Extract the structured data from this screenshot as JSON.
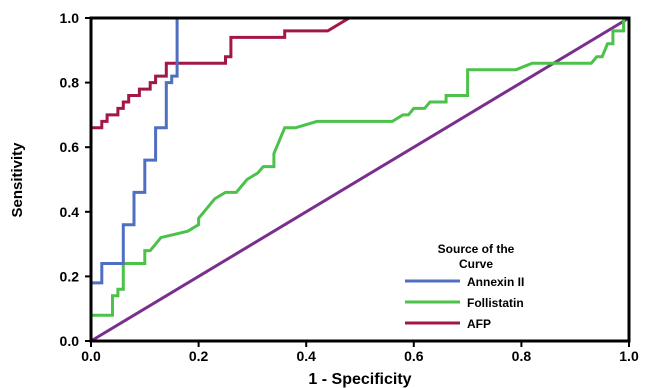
{
  "chart_data": {
    "type": "line",
    "xlabel": "1 - Specificity",
    "ylabel": "Sensitivity",
    "xlim": [
      0,
      1
    ],
    "ylim": [
      0,
      1
    ],
    "x_ticks": [
      "0.0",
      "0.2",
      "0.4",
      "0.6",
      "0.8",
      "1.0"
    ],
    "y_ticks": [
      "0.0",
      "0.2",
      "0.4",
      "0.6",
      "0.8",
      "1.0"
    ],
    "grid": false,
    "legend": {
      "title_line1": "Source of the",
      "title_line2": "Curve",
      "placement": "bottom-right"
    },
    "series": [
      {
        "name": "Annexin II",
        "color": "#4f6fc0",
        "points": [
          [
            0,
            0
          ],
          [
            0,
            0.18
          ],
          [
            0.02,
            0.18
          ],
          [
            0.02,
            0.24
          ],
          [
            0.06,
            0.24
          ],
          [
            0.06,
            0.36
          ],
          [
            0.08,
            0.36
          ],
          [
            0.08,
            0.46
          ],
          [
            0.1,
            0.46
          ],
          [
            0.1,
            0.56
          ],
          [
            0.12,
            0.56
          ],
          [
            0.12,
            0.66
          ],
          [
            0.14,
            0.66
          ],
          [
            0.14,
            0.8
          ],
          [
            0.15,
            0.8
          ],
          [
            0.15,
            0.82
          ],
          [
            0.16,
            0.82
          ],
          [
            0.16,
            1.0
          ],
          [
            1.0,
            1.0
          ]
        ]
      },
      {
        "name": "Follistatin",
        "color": "#4cc24a",
        "points": [
          [
            0,
            0
          ],
          [
            0,
            0.08
          ],
          [
            0.04,
            0.08
          ],
          [
            0.04,
            0.14
          ],
          [
            0.05,
            0.14
          ],
          [
            0.05,
            0.16
          ],
          [
            0.06,
            0.16
          ],
          [
            0.06,
            0.24
          ],
          [
            0.1,
            0.24
          ],
          [
            0.1,
            0.28
          ],
          [
            0.11,
            0.28
          ],
          [
            0.12,
            0.3
          ],
          [
            0.13,
            0.32
          ],
          [
            0.18,
            0.34
          ],
          [
            0.2,
            0.36
          ],
          [
            0.2,
            0.38
          ],
          [
            0.21,
            0.4
          ],
          [
            0.22,
            0.42
          ],
          [
            0.23,
            0.44
          ],
          [
            0.25,
            0.46
          ],
          [
            0.27,
            0.46
          ],
          [
            0.28,
            0.48
          ],
          [
            0.29,
            0.5
          ],
          [
            0.31,
            0.52
          ],
          [
            0.32,
            0.54
          ],
          [
            0.34,
            0.54
          ],
          [
            0.34,
            0.58
          ],
          [
            0.35,
            0.62
          ],
          [
            0.36,
            0.66
          ],
          [
            0.38,
            0.66
          ],
          [
            0.42,
            0.68
          ],
          [
            0.56,
            0.68
          ],
          [
            0.58,
            0.7
          ],
          [
            0.59,
            0.7
          ],
          [
            0.6,
            0.72
          ],
          [
            0.62,
            0.72
          ],
          [
            0.63,
            0.74
          ],
          [
            0.66,
            0.74
          ],
          [
            0.66,
            0.76
          ],
          [
            0.7,
            0.76
          ],
          [
            0.7,
            0.84
          ],
          [
            0.79,
            0.84
          ],
          [
            0.82,
            0.86
          ],
          [
            0.93,
            0.86
          ],
          [
            0.94,
            0.88
          ],
          [
            0.95,
            0.88
          ],
          [
            0.96,
            0.92
          ],
          [
            0.97,
            0.92
          ],
          [
            0.97,
            0.96
          ],
          [
            0.99,
            0.96
          ],
          [
            0.99,
            1.0
          ],
          [
            1.0,
            1.0
          ]
        ]
      },
      {
        "name": "AFP",
        "color": "#a3164a",
        "points": [
          [
            0,
            0
          ],
          [
            0,
            0.66
          ],
          [
            0.02,
            0.66
          ],
          [
            0.02,
            0.68
          ],
          [
            0.03,
            0.68
          ],
          [
            0.03,
            0.7
          ],
          [
            0.05,
            0.7
          ],
          [
            0.05,
            0.72
          ],
          [
            0.06,
            0.72
          ],
          [
            0.06,
            0.74
          ],
          [
            0.07,
            0.74
          ],
          [
            0.07,
            0.76
          ],
          [
            0.09,
            0.76
          ],
          [
            0.09,
            0.78
          ],
          [
            0.11,
            0.78
          ],
          [
            0.11,
            0.8
          ],
          [
            0.12,
            0.8
          ],
          [
            0.12,
            0.82
          ],
          [
            0.14,
            0.82
          ],
          [
            0.14,
            0.86
          ],
          [
            0.25,
            0.86
          ],
          [
            0.25,
            0.88
          ],
          [
            0.26,
            0.88
          ],
          [
            0.26,
            0.94
          ],
          [
            0.36,
            0.94
          ],
          [
            0.36,
            0.96
          ],
          [
            0.44,
            0.96
          ],
          [
            0.48,
            1.0
          ],
          [
            1.0,
            1.0
          ]
        ]
      },
      {
        "name": "Reference Line",
        "color": "#7a2f8c",
        "points": [
          [
            0,
            0
          ],
          [
            1,
            1
          ]
        ]
      }
    ]
  }
}
